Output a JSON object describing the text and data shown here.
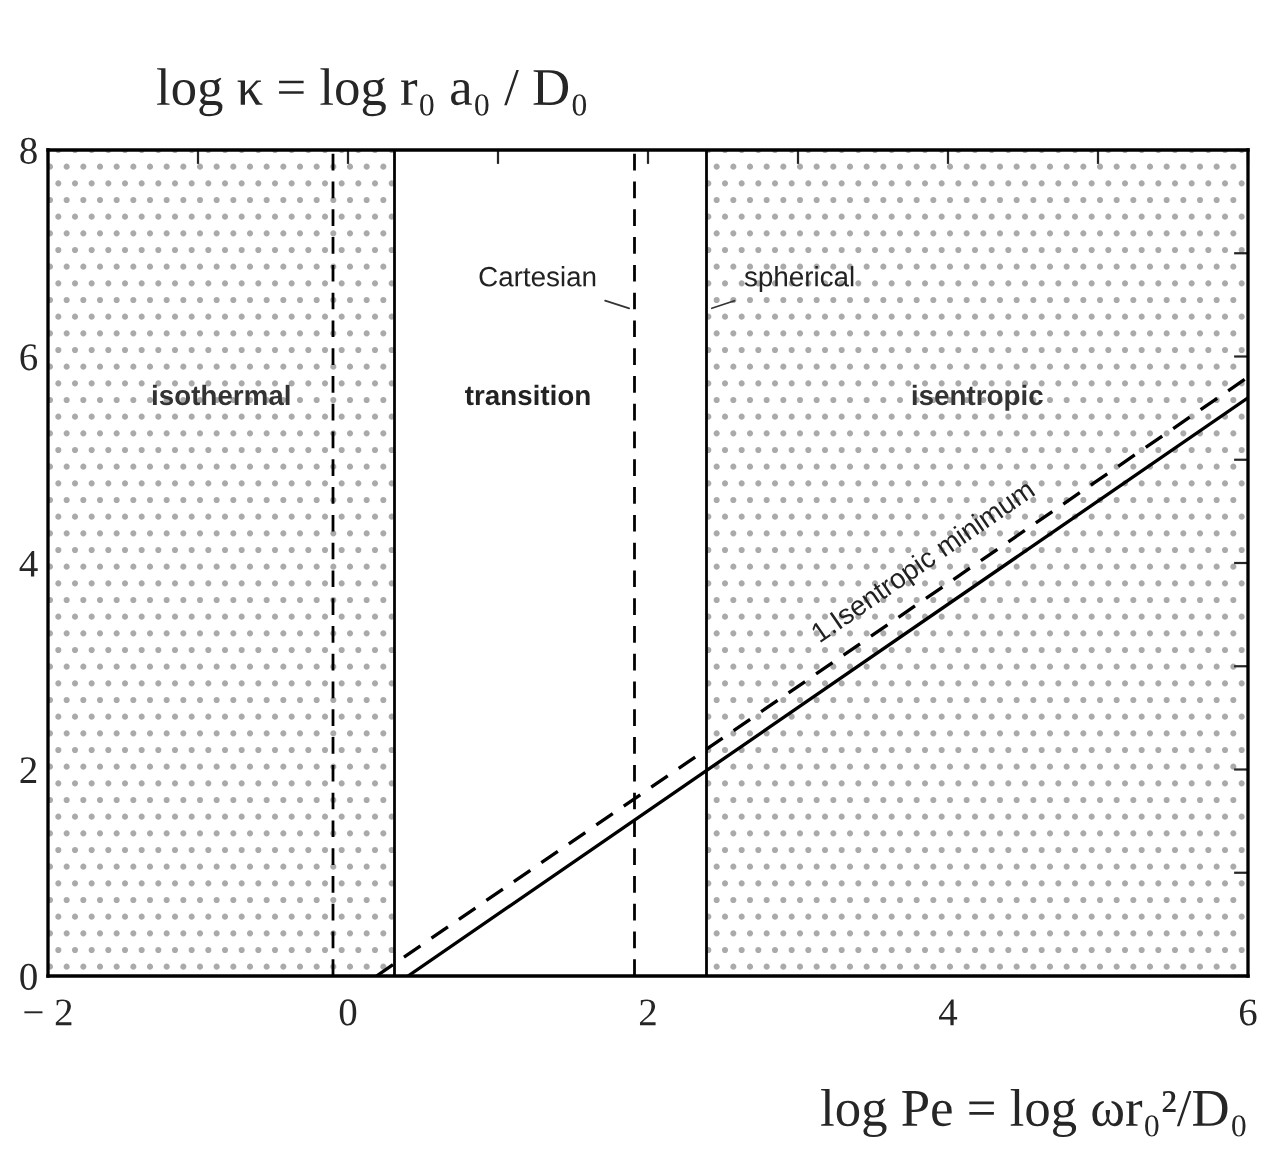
{
  "chart_data": {
    "type": "line",
    "ylabel": "log κ = log r₀ a₀ / D₀",
    "xlabel": "log Pe = log ωr₀²/D₀",
    "xlim": [
      -2,
      6
    ],
    "ylim": [
      0,
      8
    ],
    "xticks": [
      {
        "value": -2,
        "label": "− 2"
      },
      {
        "value": -1,
        "label": null
      },
      0,
      {
        "value": 1,
        "label": null
      },
      2,
      {
        "value": 3,
        "label": null
      },
      4,
      {
        "value": 5,
        "label": null
      },
      6
    ],
    "yticks": [
      0,
      {
        "value": 1,
        "label": null
      },
      2,
      {
        "value": 3,
        "label": null
      },
      4,
      {
        "value": 5,
        "label": null
      },
      6,
      {
        "value": 7,
        "label": null
      },
      8
    ],
    "series": [
      {
        "x": [
          0.4,
          6
        ],
        "values": [
          0,
          5.6
        ],
        "color": "#000000",
        "line_style": "solid"
      },
      {
        "x": [
          0.19,
          6
        ],
        "values": [
          0,
          5.8
        ],
        "color": "#000000",
        "line_style": "dashed"
      }
    ],
    "bands": [
      {
        "axis": "x",
        "from": -2,
        "to": 0.31,
        "label": "isothermal",
        "color": "#aaaaaa"
      },
      {
        "axis": "x",
        "from": 2.39,
        "to": 6,
        "label": "isentropic",
        "color": "#aaaaaa"
      }
    ],
    "ref_lines": [
      {
        "axis": "x",
        "value": -0.1,
        "line_style": "dashed"
      },
      {
        "axis": "x",
        "value": 0.31,
        "line_style": "solid"
      },
      {
        "axis": "x",
        "value": 1.91,
        "line_style": "dashed",
        "label": "Cartesian"
      },
      {
        "axis": "x",
        "value": 2.39,
        "line_style": "solid",
        "label": "spherical"
      }
    ],
    "annotations": [
      "1.Isentropic minimum",
      "transition"
    ],
    "grid": false,
    "legend": false
  }
}
